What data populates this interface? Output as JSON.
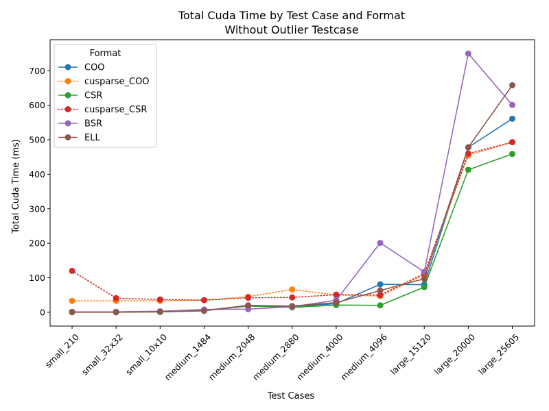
{
  "chart_data": {
    "type": "line",
    "title": "Total Cuda Time by Test Case and Format",
    "subtitle": "Without Outlier Testcase",
    "xlabel": "Test Cases",
    "ylabel": "Total Cuda Time (ms)",
    "ylim": [
      -40,
      790
    ],
    "yticks": [
      0,
      100,
      200,
      300,
      400,
      500,
      600,
      700
    ],
    "categories": [
      "small_210",
      "small_32x32",
      "small_10x10",
      "medium_1484",
      "medium_2048",
      "medium_2880",
      "medium_4000",
      "medium_4096",
      "large_15120",
      "large_20000",
      "large_25605"
    ],
    "legend_title": "Format",
    "legend_position": "upper-left",
    "grid": false,
    "series": [
      {
        "name": "COO",
        "color": "#1f77b4",
        "style": "solid",
        "values": [
          1,
          1,
          2,
          5,
          20,
          16,
          25,
          81,
          80,
          478,
          561
        ]
      },
      {
        "name": "cusparse_COO",
        "color": "#ff7f0e",
        "style": "dotted",
        "values": [
          33,
          33,
          33,
          35,
          45,
          66,
          50,
          47,
          108,
          455,
          493
        ]
      },
      {
        "name": "CSR",
        "color": "#2ca02c",
        "style": "solid",
        "values": [
          1,
          1,
          1,
          5,
          18,
          14,
          21,
          20,
          73,
          413,
          459
        ]
      },
      {
        "name": "cusparse_CSR",
        "color": "#d62728",
        "style": "dotted",
        "values": [
          120,
          41,
          37,
          35,
          42,
          43,
          51,
          50,
          112,
          460,
          493
        ]
      },
      {
        "name": "BSR",
        "color": "#9467bd",
        "style": "solid",
        "values": [
          1,
          1,
          3,
          8,
          9,
          16,
          35,
          201,
          117,
          750,
          601
        ]
      },
      {
        "name": "ELL",
        "color": "#8c564b",
        "style": "solid",
        "values": [
          0,
          0,
          1,
          4,
          20,
          18,
          28,
          63,
          97,
          478,
          658
        ]
      }
    ]
  }
}
